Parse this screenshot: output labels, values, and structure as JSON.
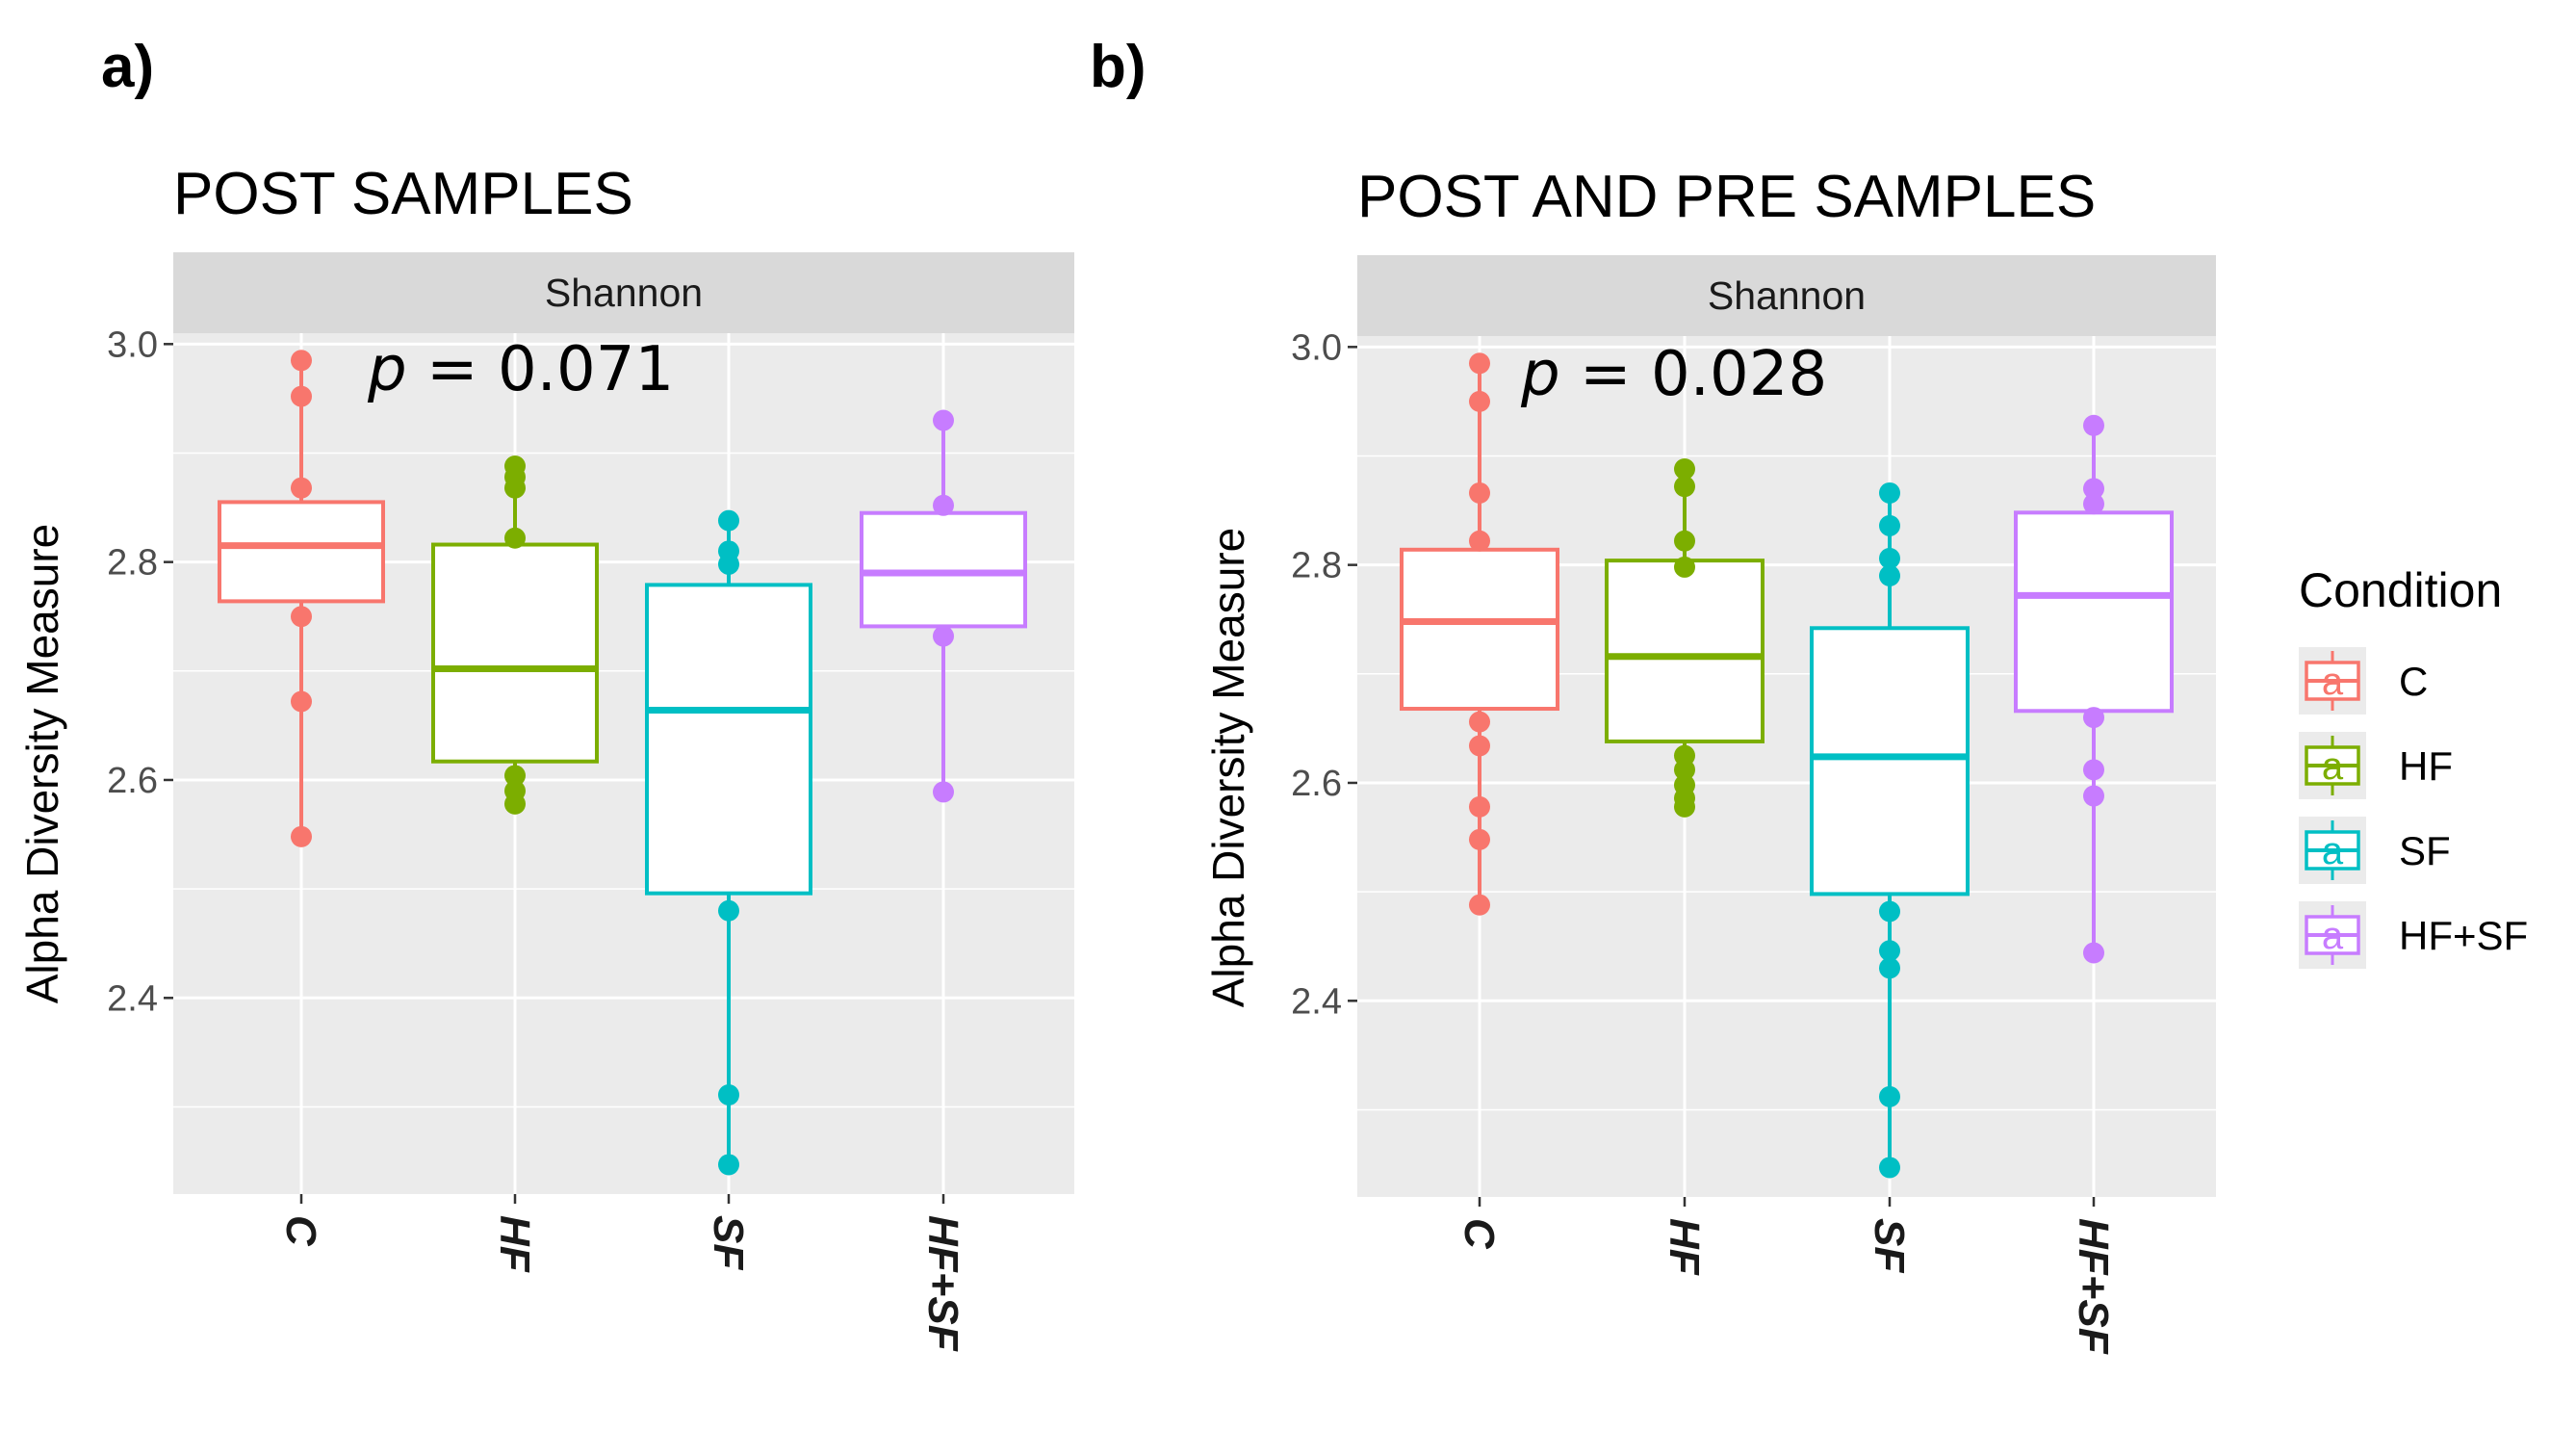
{
  "chart_data": [
    {
      "type": "boxplot",
      "panel_label": "a)",
      "title": "POST SAMPLES",
      "facet": "Shannon",
      "annotation": {
        "p_label": "p",
        "p_value": " = 0.071"
      },
      "xlabel": "",
      "ylabel": "Alpha Diversity Measure",
      "ylim": [
        2.22,
        3.01
      ],
      "yticks": [
        2.4,
        2.6,
        2.8,
        3.0
      ],
      "ytick_labels": [
        "2.4",
        "2.6",
        "2.8",
        "3.0"
      ],
      "categories": [
        "C",
        "HF",
        "SF",
        "HF+SF"
      ],
      "boxes": [
        {
          "name": "C",
          "q1": 2.764,
          "median": 2.815,
          "q3": 2.855,
          "whisker_low": 2.548,
          "whisker_high": 2.985,
          "points": [
            2.985,
            2.952,
            2.868,
            2.75,
            2.672,
            2.548
          ]
        },
        {
          "name": "HF",
          "q1": 2.617,
          "median": 2.702,
          "q3": 2.816,
          "whisker_low": 2.578,
          "whisker_high": 2.888,
          "points": [
            2.888,
            2.878,
            2.868,
            2.822,
            2.604,
            2.59,
            2.578
          ]
        },
        {
          "name": "SF",
          "q1": 2.496,
          "median": 2.664,
          "q3": 2.779,
          "whisker_low": 2.247,
          "whisker_high": 2.838,
          "points": [
            2.838,
            2.81,
            2.798,
            2.48,
            2.311,
            2.247
          ]
        },
        {
          "name": "HF+SF",
          "q1": 2.741,
          "median": 2.79,
          "q3": 2.845,
          "whisker_low": 2.589,
          "whisker_high": 2.93,
          "points": [
            2.93,
            2.852,
            2.732,
            2.589
          ]
        }
      ]
    },
    {
      "type": "boxplot",
      "panel_label": "b)",
      "title": "POST AND PRE SAMPLES",
      "facet": "Shannon",
      "annotation": {
        "p_label": "p",
        "p_value": " = 0.028"
      },
      "xlabel": "",
      "ylabel": "Alpha Diversity Measure",
      "ylim": [
        2.22,
        3.01
      ],
      "yticks": [
        2.4,
        2.6,
        2.8,
        3.0
      ],
      "ytick_labels": [
        "2.4",
        "2.6",
        "2.8",
        "3.0"
      ],
      "categories": [
        "C",
        "HF",
        "SF",
        "HF+SF"
      ],
      "boxes": [
        {
          "name": "C",
          "q1": 2.668,
          "median": 2.748,
          "q3": 2.814,
          "whisker_low": 2.488,
          "whisker_high": 2.985,
          "points": [
            2.985,
            2.95,
            2.866,
            2.822,
            2.656,
            2.634,
            2.578,
            2.548,
            2.488
          ]
        },
        {
          "name": "HF",
          "q1": 2.638,
          "median": 2.716,
          "q3": 2.804,
          "whisker_low": 2.578,
          "whisker_high": 2.888,
          "points": [
            2.888,
            2.872,
            2.822,
            2.798,
            2.625,
            2.612,
            2.598,
            2.586,
            2.578
          ]
        },
        {
          "name": "SF",
          "q1": 2.498,
          "median": 2.624,
          "q3": 2.742,
          "whisker_low": 2.247,
          "whisker_high": 2.866,
          "points": [
            2.866,
            2.836,
            2.806,
            2.79,
            2.482,
            2.446,
            2.43,
            2.312,
            2.247
          ]
        },
        {
          "name": "HF+SF",
          "q1": 2.666,
          "median": 2.772,
          "q3": 2.848,
          "whisker_low": 2.444,
          "whisker_high": 2.928,
          "points": [
            2.928,
            2.87,
            2.856,
            2.66,
            2.612,
            2.588,
            2.444
          ]
        }
      ]
    }
  ],
  "legend": {
    "title": "Condition",
    "key_glyph": "a",
    "items": [
      {
        "label": "C",
        "color": "#F8766D"
      },
      {
        "label": "HF",
        "color": "#7CAE00"
      },
      {
        "label": "SF",
        "color": "#00BFC4"
      },
      {
        "label": "HF+SF",
        "color": "#C77CFF"
      }
    ]
  },
  "colors": {
    "C": "#F8766D",
    "HF": "#7CAE00",
    "SF": "#00BFC4",
    "HF+SF": "#C77CFF",
    "panel_bg": "#EBEBEB",
    "strip_bg": "#D9D9D9",
    "grid": "#FFFFFF"
  }
}
